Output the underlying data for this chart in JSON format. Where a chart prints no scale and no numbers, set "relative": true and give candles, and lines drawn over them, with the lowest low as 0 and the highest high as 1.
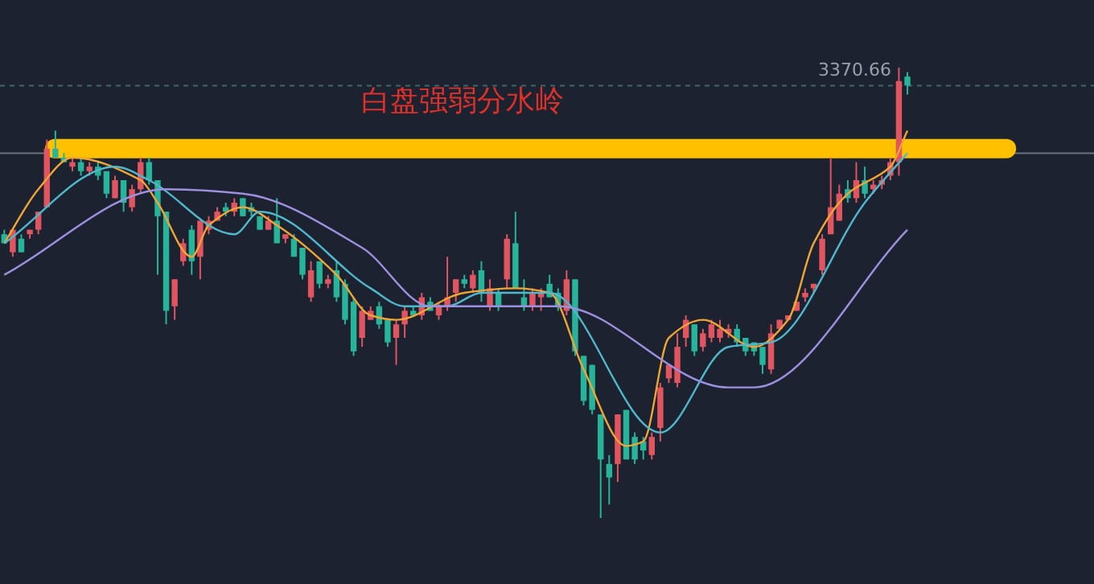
{
  "chart_data": {
    "type": "candlestick",
    "relative": true,
    "categories": [
      null,
      null,
      null,
      null,
      null,
      null,
      null,
      null,
      null,
      null,
      null,
      null,
      null,
      null,
      null,
      null,
      null,
      null,
      null,
      null,
      null,
      null,
      null,
      null,
      null,
      null,
      null,
      null,
      null,
      null,
      null,
      null,
      null,
      null,
      null,
      null,
      null,
      null,
      null,
      null,
      null,
      null,
      null,
      null,
      null,
      null,
      null,
      null,
      null,
      null,
      null,
      null,
      null,
      null,
      null,
      null,
      null,
      null,
      null,
      null,
      null,
      null,
      null,
      null,
      null,
      null,
      null,
      null,
      null,
      null,
      null,
      null,
      null,
      null,
      null,
      null,
      null,
      null,
      null,
      null,
      null,
      null,
      null,
      null,
      null,
      null,
      null,
      null,
      null,
      null,
      null,
      null,
      null,
      null,
      null,
      null,
      null,
      null,
      null,
      null,
      null,
      null,
      null,
      null,
      null,
      null,
      null
    ],
    "ohlc": [
      [
        0.63,
        0.64,
        0.61,
        0.61
      ],
      [
        0.59,
        0.64,
        0.58,
        0.64
      ],
      [
        0.62,
        0.63,
        0.59,
        0.59
      ],
      [
        0.63,
        0.64,
        0.62,
        0.64
      ],
      [
        0.64,
        0.68,
        0.63,
        0.68
      ],
      [
        0.69,
        0.84,
        0.69,
        0.82
      ],
      [
        0.82,
        0.86,
        0.8,
        0.8
      ],
      [
        0.8,
        0.81,
        0.79,
        0.79
      ],
      [
        0.78,
        0.8,
        0.77,
        0.79
      ],
      [
        0.79,
        0.8,
        0.76,
        0.77
      ],
      [
        0.77,
        0.79,
        0.76,
        0.78
      ],
      [
        0.78,
        0.79,
        0.75,
        0.76
      ],
      [
        0.77,
        0.77,
        0.71,
        0.72
      ],
      [
        0.71,
        0.76,
        0.71,
        0.75
      ],
      [
        0.75,
        0.75,
        0.68,
        0.7
      ],
      [
        0.69,
        0.74,
        0.68,
        0.73
      ],
      [
        0.73,
        0.8,
        0.72,
        0.79
      ],
      [
        0.79,
        0.8,
        0.74,
        0.75
      ],
      [
        0.75,
        0.75,
        0.54,
        0.67
      ],
      [
        0.68,
        0.68,
        0.43,
        0.46
      ],
      [
        0.47,
        0.53,
        0.44,
        0.53
      ],
      [
        0.57,
        0.62,
        0.56,
        0.61
      ],
      [
        0.64,
        0.65,
        0.54,
        0.57
      ],
      [
        0.58,
        0.66,
        0.53,
        0.66
      ],
      [
        0.64,
        0.67,
        0.63,
        0.66
      ],
      [
        0.66,
        0.69,
        0.66,
        0.68
      ],
      [
        0.69,
        0.7,
        0.67,
        0.68
      ],
      [
        0.68,
        0.71,
        0.67,
        0.7
      ],
      [
        0.71,
        0.71,
        0.67,
        0.67
      ],
      [
        0.69,
        0.7,
        0.67,
        0.68
      ],
      [
        0.67,
        0.67,
        0.64,
        0.64
      ],
      [
        0.64,
        0.67,
        0.64,
        0.66
      ],
      [
        0.66,
        0.71,
        0.61,
        0.61
      ],
      [
        0.62,
        0.63,
        0.61,
        0.63
      ],
      [
        0.62,
        0.63,
        0.58,
        0.58
      ],
      [
        0.6,
        0.6,
        0.53,
        0.54
      ],
      [
        0.49,
        0.57,
        0.48,
        0.55
      ],
      [
        0.57,
        0.57,
        0.51,
        0.52
      ],
      [
        0.52,
        0.54,
        0.51,
        0.53
      ],
      [
        0.55,
        0.57,
        0.48,
        0.49
      ],
      [
        0.52,
        0.53,
        0.43,
        0.44
      ],
      [
        0.48,
        0.49,
        0.36,
        0.37
      ],
      [
        0.4,
        0.47,
        0.38,
        0.46
      ],
      [
        0.44,
        0.47,
        0.44,
        0.46
      ],
      [
        0.47,
        0.48,
        0.42,
        0.43
      ],
      [
        0.44,
        0.44,
        0.38,
        0.39
      ],
      [
        0.4,
        0.44,
        0.34,
        0.43
      ],
      [
        0.43,
        0.47,
        0.4,
        0.46
      ],
      [
        0.46,
        0.47,
        0.45,
        0.45
      ],
      [
        0.45,
        0.5,
        0.44,
        0.49
      ],
      [
        0.48,
        0.49,
        0.46,
        0.46
      ],
      [
        0.45,
        0.48,
        0.44,
        0.47
      ],
      [
        0.47,
        0.58,
        0.46,
        0.49
      ],
      [
        0.5,
        0.53,
        0.48,
        0.53
      ],
      [
        0.53,
        0.54,
        0.51,
        0.52
      ],
      [
        0.51,
        0.55,
        0.5,
        0.54
      ],
      [
        0.55,
        0.57,
        0.48,
        0.5
      ],
      [
        0.47,
        0.53,
        0.46,
        0.51
      ],
      [
        0.5,
        0.51,
        0.46,
        0.47
      ],
      [
        0.53,
        0.63,
        0.51,
        0.62
      ],
      [
        0.61,
        0.68,
        0.51,
        0.51
      ],
      [
        0.49,
        0.53,
        0.46,
        0.47
      ],
      [
        0.47,
        0.51,
        0.46,
        0.5
      ],
      [
        0.49,
        0.51,
        0.46,
        0.5
      ],
      [
        0.52,
        0.54,
        0.49,
        0.49
      ],
      [
        0.5,
        0.51,
        0.46,
        0.47
      ],
      [
        0.46,
        0.55,
        0.45,
        0.53
      ],
      [
        0.53,
        0.53,
        0.36,
        0.37
      ],
      [
        0.36,
        0.36,
        0.25,
        0.26
      ],
      [
        0.34,
        0.34,
        0.23,
        0.24
      ],
      [
        0.23,
        0.23,
        0.0,
        0.13
      ],
      [
        0.12,
        0.14,
        0.03,
        0.09
      ],
      [
        0.12,
        0.23,
        0.08,
        0.23
      ],
      [
        0.24,
        0.24,
        0.13,
        0.13
      ],
      [
        0.18,
        0.19,
        0.12,
        0.13
      ],
      [
        0.17,
        0.18,
        0.13,
        0.15
      ],
      [
        0.14,
        0.19,
        0.13,
        0.18
      ],
      [
        0.2,
        0.3,
        0.17,
        0.29
      ],
      [
        0.31,
        0.34,
        0.3,
        0.34
      ],
      [
        0.3,
        0.41,
        0.29,
        0.38
      ],
      [
        0.4,
        0.45,
        0.38,
        0.44
      ],
      [
        0.43,
        0.43,
        0.36,
        0.37
      ],
      [
        0.38,
        0.42,
        0.37,
        0.41
      ],
      [
        0.4,
        0.44,
        0.39,
        0.43
      ],
      [
        0.4,
        0.44,
        0.39,
        0.42
      ],
      [
        0.41,
        0.43,
        0.4,
        0.42
      ],
      [
        0.42,
        0.43,
        0.38,
        0.39
      ],
      [
        0.4,
        0.4,
        0.36,
        0.37
      ],
      [
        0.39,
        0.39,
        0.36,
        0.37
      ],
      [
        0.38,
        0.38,
        0.32,
        0.34
      ],
      [
        0.33,
        0.43,
        0.32,
        0.41
      ],
      [
        0.42,
        0.44,
        0.42,
        0.44
      ],
      [
        0.44,
        0.45,
        0.44,
        0.45
      ],
      [
        0.46,
        0.48,
        0.46,
        0.48
      ],
      [
        0.49,
        0.51,
        0.48,
        0.5
      ],
      [
        0.51,
        0.52,
        0.5,
        0.52
      ],
      [
        0.55,
        0.63,
        0.54,
        0.62
      ],
      [
        0.63,
        0.8,
        0.63,
        0.69
      ],
      [
        0.66,
        0.74,
        0.66,
        0.72
      ],
      [
        0.73,
        0.75,
        0.7,
        0.71
      ],
      [
        0.71,
        0.79,
        0.7,
        0.75
      ],
      [
        0.75,
        0.78,
        0.71,
        0.72
      ],
      [
        0.73,
        0.75,
        0.72,
        0.74
      ],
      [
        0.74,
        0.76,
        0.73,
        0.75
      ],
      [
        0.76,
        0.8,
        0.75,
        0.79
      ],
      [
        0.79,
        1.0,
        0.76,
        0.97
      ],
      [
        0.98,
        0.99,
        0.94,
        0.96
      ]
    ],
    "series": [
      {
        "type": "line",
        "color": "#f0a535",
        "values": [
          0.61,
          null,
          null,
          null,
          0.73,
          null,
          null,
          null,
          0.8,
          null,
          null,
          null,
          null,
          null,
          null,
          null,
          0.75,
          null,
          0.7,
          null,
          null,
          null,
          0.58,
          null,
          0.65,
          null,
          null,
          null,
          0.69,
          null,
          null,
          null,
          0.65,
          null,
          null,
          null,
          null,
          null,
          null,
          0.54,
          null,
          null,
          null,
          0.45,
          null,
          null,
          0.44,
          null,
          null,
          null,
          null,
          null,
          null,
          null,
          0.5,
          null,
          null,
          null,
          null,
          null,
          0.51,
          null,
          null,
          null,
          0.5,
          null,
          null,
          null,
          0.33,
          null,
          null,
          null,
          null,
          0.16,
          null,
          0.17,
          null,
          null,
          0.4,
          null,
          null,
          null,
          0.44,
          null,
          null,
          null,
          null,
          null,
          0.38,
          null,
          null,
          null,
          0.44,
          null,
          null,
          0.61,
          null,
          null,
          null,
          0.72,
          null,
          null,
          null,
          null,
          0.78,
          null,
          0.86
        ]
      },
      {
        "type": "line",
        "color": "#4fb8cc",
        "values": [
          0.61,
          null,
          null,
          null,
          null,
          null,
          null,
          null,
          null,
          null,
          null,
          null,
          null,
          0.78,
          null,
          null,
          null,
          0.75,
          null,
          null,
          null,
          null,
          null,
          null,
          null,
          null,
          null,
          0.63,
          null,
          null,
          0.68,
          null,
          null,
          null,
          null,
          null,
          null,
          null,
          null,
          null,
          null,
          null,
          null,
          0.51,
          null,
          null,
          null,
          0.47,
          null,
          null,
          null,
          null,
          0.47,
          null,
          null,
          null,
          0.5,
          null,
          null,
          null,
          null,
          null,
          null,
          null,
          0.5,
          null,
          null,
          null,
          null,
          null,
          null,
          null,
          null,
          null,
          null,
          null,
          null,
          0.19,
          null,
          null,
          null,
          null,
          null,
          null,
          null,
          0.38,
          null,
          null,
          null,
          null,
          0.39,
          null,
          null,
          null,
          null,
          null,
          null,
          null,
          null,
          null,
          null,
          0.7,
          null,
          null,
          null,
          null,
          0.81
        ]
      },
      {
        "type": "line",
        "color": "#9d90e0",
        "values": [
          0.54,
          null,
          null,
          null,
          null,
          null,
          null,
          null,
          null,
          null,
          null,
          null,
          null,
          null,
          null,
          null,
          null,
          null,
          null,
          0.73,
          null,
          null,
          null,
          null,
          null,
          null,
          null,
          null,
          0.72,
          null,
          null,
          null,
          null,
          null,
          null,
          null,
          null,
          null,
          null,
          null,
          null,
          null,
          0.6,
          null,
          null,
          null,
          null,
          null,
          null,
          null,
          0.47,
          null,
          null,
          null,
          null,
          null,
          null,
          null,
          null,
          null,
          null,
          null,
          null,
          null,
          null,
          0.47,
          null,
          null,
          null,
          null,
          null,
          null,
          null,
          null,
          null,
          null,
          null,
          null,
          null,
          null,
          null,
          null,
          null,
          null,
          null,
          0.29,
          null,
          null,
          0.29,
          null,
          null,
          null,
          null,
          null,
          null,
          null,
          null,
          null,
          null,
          null,
          null,
          null,
          null,
          null,
          null,
          null,
          0.64
        ]
      }
    ],
    "annotations": [
      "3370.66"
    ],
    "ref_lines": [
      {
        "axis": "y",
        "value": 0.81,
        "color": "#6b7280"
      },
      {
        "axis": "y",
        "value": 0.82,
        "label": "白盘强弱分水岭",
        "color": "#ffc000"
      },
      {
        "axis": "y",
        "value": 0.96,
        "color": "#3d6668",
        "line_style": "dashed"
      }
    ]
  }
}
